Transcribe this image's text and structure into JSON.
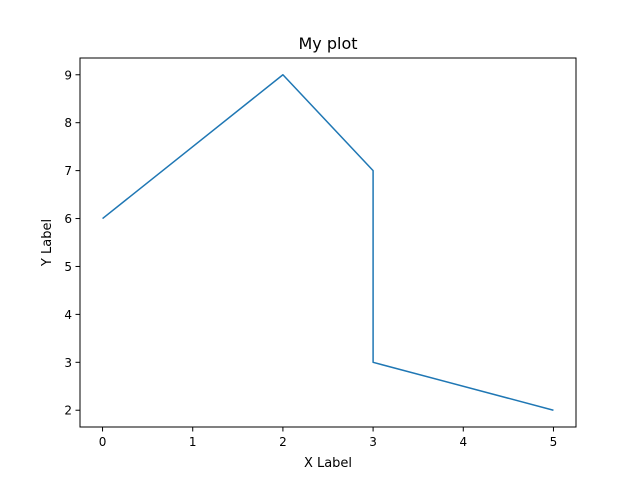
{
  "chart_data": {
    "type": "line",
    "title": "My plot",
    "xlabel": "X Label",
    "ylabel": "Y Label",
    "x": [
      0,
      2,
      3,
      3,
      5
    ],
    "series": [
      {
        "values": [
          6,
          9,
          7,
          3,
          2
        ],
        "color": "#1f77b4"
      }
    ],
    "xlim": [
      -0.25,
      5.25
    ],
    "ylim": [
      1.65,
      9.35
    ],
    "xticks": [
      0,
      1,
      2,
      3,
      4,
      5
    ],
    "yticks": [
      2,
      3,
      4,
      5,
      6,
      7,
      8,
      9
    ],
    "grid": false,
    "legend": "none"
  }
}
